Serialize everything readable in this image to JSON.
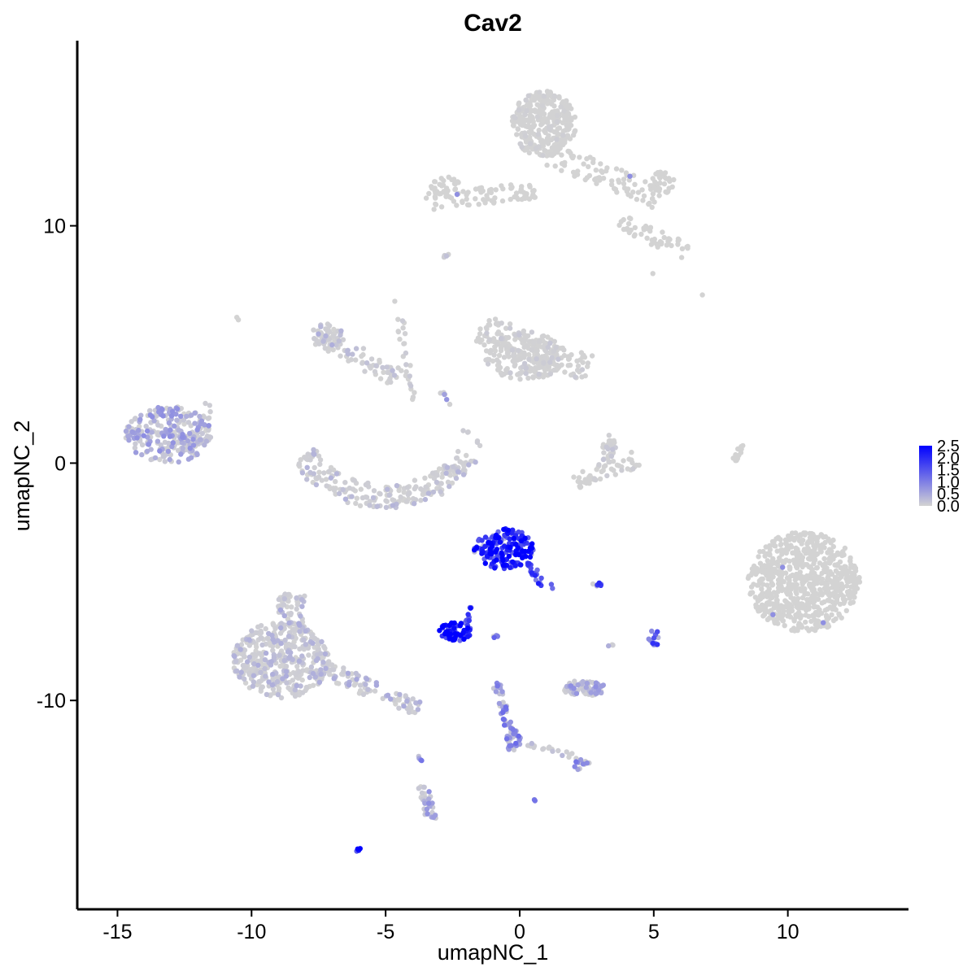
{
  "chart_data": {
    "type": "scatter",
    "title": "Cav2",
    "xlabel": "umapNC_1",
    "ylabel": "umapNC_2",
    "xlim": [
      -16.5,
      14.5
    ],
    "ylim": [
      -18.8,
      17.8
    ],
    "xticks": [
      -15,
      -10,
      -5,
      0,
      5,
      10
    ],
    "xtick_labels": [
      "-15",
      "-10",
      "-5",
      "0",
      "5",
      "10"
    ],
    "yticks": [
      -10,
      0,
      10
    ],
    "ytick_labels": [
      "-10",
      "0",
      "10"
    ],
    "grid": false,
    "legend": {
      "placement": "right",
      "labels": [
        "2.5",
        "2.0",
        "1.5",
        "1.0",
        "0.5",
        "0.0"
      ],
      "values": [
        2.5,
        2.0,
        1.5,
        1.0,
        0.5,
        0.0
      ],
      "range": [
        0,
        2.5
      ]
    },
    "color_low": "#d3d3d3",
    "color_high": "#0000ff",
    "clusters": [
      {
        "shape": "ellipse",
        "cx": 0.9,
        "cy": 14.3,
        "rx": 1.2,
        "ry": 1.4,
        "n": 320,
        "expr": 0.05
      },
      {
        "shape": "segment",
        "x1": 1.2,
        "y1": 13.0,
        "x2": 5.2,
        "y2": 11.2,
        "w": 0.5,
        "n": 90,
        "expr": 0.02
      },
      {
        "shape": "ellipse",
        "cx": 5.3,
        "cy": 11.8,
        "rx": 0.5,
        "ry": 0.5,
        "n": 30,
        "expr": 0.02
      },
      {
        "shape": "segment",
        "x1": 3.8,
        "y1": 10.2,
        "x2": 6.2,
        "y2": 8.9,
        "w": 0.35,
        "n": 50,
        "expr": 0.02
      },
      {
        "shape": "segment",
        "x1": -3.5,
        "y1": 11.0,
        "x2": 0.6,
        "y2": 11.5,
        "w": 0.35,
        "n": 75,
        "expr": 0.02
      },
      {
        "shape": "ellipse",
        "cx": -2.8,
        "cy": 11.6,
        "rx": 0.6,
        "ry": 0.5,
        "n": 35,
        "expr": 0.02
      },
      {
        "shape": "ellipse",
        "cx": 0.2,
        "cy": 4.5,
        "rx": 1.5,
        "ry": 1.0,
        "n": 200,
        "expr": 0.1
      },
      {
        "shape": "segment",
        "x1": -1.5,
        "y1": 5.7,
        "x2": 2.6,
        "y2": 4.0,
        "w": 0.6,
        "n": 120,
        "expr": 0.08
      },
      {
        "shape": "ellipse",
        "cx": -7.2,
        "cy": 5.4,
        "rx": 0.6,
        "ry": 0.5,
        "n": 40,
        "expr": 0.3
      },
      {
        "shape": "segment",
        "x1": -7.5,
        "y1": 5.4,
        "x2": -4.6,
        "y2": 3.6,
        "w": 0.4,
        "n": 70,
        "expr": 0.22
      },
      {
        "shape": "segment",
        "x1": -4.6,
        "y1": 7.0,
        "x2": -4.0,
        "y2": 2.5,
        "w": 0.15,
        "n": 25,
        "expr": 0.1
      },
      {
        "shape": "arc",
        "cx": -5.0,
        "cy": 1.4,
        "rx": 3.3,
        "ry": 2.8,
        "a1": 200,
        "a2": 340,
        "w": 0.5,
        "n": 220,
        "expr": 0.25
      },
      {
        "shape": "ellipse",
        "cx": -13.1,
        "cy": 1.2,
        "rx": 1.6,
        "ry": 1.2,
        "n": 260,
        "expr": 0.55
      },
      {
        "shape": "segment",
        "x1": -12.3,
        "y1": 0.4,
        "x2": -11.6,
        "y2": 2.5,
        "w": 0.25,
        "n": 25,
        "expr": 0.3
      },
      {
        "shape": "ellipse",
        "cx": 3.3,
        "cy": 0.6,
        "rx": 0.35,
        "ry": 0.6,
        "n": 30,
        "expr": 0.15
      },
      {
        "shape": "segment",
        "x1": 2.1,
        "y1": -0.8,
        "x2": 4.4,
        "y2": 0.2,
        "w": 0.35,
        "n": 50,
        "expr": 0.06
      },
      {
        "shape": "segment",
        "x1": 8.0,
        "y1": 0.0,
        "x2": 8.3,
        "y2": 0.9,
        "w": 0.1,
        "n": 12,
        "expr": 0.02
      },
      {
        "shape": "ellipse",
        "cx": 10.6,
        "cy": -5.0,
        "rx": 2.1,
        "ry": 2.1,
        "n": 700,
        "expr": 0.01
      },
      {
        "shape": "ellipse",
        "cx": -0.6,
        "cy": -3.6,
        "rx": 1.1,
        "ry": 0.9,
        "n": 180,
        "expr": 1.9
      },
      {
        "shape": "segment",
        "x1": 0.2,
        "y1": -4.2,
        "x2": 1.2,
        "y2": -5.4,
        "w": 0.2,
        "n": 20,
        "expr": 1.5
      },
      {
        "shape": "ellipse",
        "cx": -2.4,
        "cy": -7.1,
        "rx": 0.6,
        "ry": 0.4,
        "n": 70,
        "expr": 2.0
      },
      {
        "shape": "segment",
        "x1": -2.0,
        "y1": -6.8,
        "x2": -1.7,
        "y2": -5.8,
        "w": 0.1,
        "n": 10,
        "expr": 1.6
      },
      {
        "shape": "ellipse",
        "cx": 5.0,
        "cy": -7.4,
        "rx": 0.2,
        "ry": 0.4,
        "n": 14,
        "expr": 1.3
      },
      {
        "shape": "ellipse",
        "cx": 2.9,
        "cy": -5.1,
        "rx": 0.18,
        "ry": 0.1,
        "n": 6,
        "expr": 1.4
      },
      {
        "shape": "ellipse",
        "cx": -0.9,
        "cy": -7.2,
        "rx": 0.12,
        "ry": 0.2,
        "n": 5,
        "expr": 1.1
      },
      {
        "shape": "ellipse",
        "cx": 3.4,
        "cy": -7.7,
        "rx": 0.1,
        "ry": 0.1,
        "n": 3,
        "expr": 0.3
      },
      {
        "shape": "ellipse",
        "cx": 2.4,
        "cy": -9.5,
        "rx": 0.8,
        "ry": 0.35,
        "n": 80,
        "expr": 0.55
      },
      {
        "shape": "ellipse",
        "cx": -8.9,
        "cy": -8.3,
        "rx": 1.8,
        "ry": 1.6,
        "n": 430,
        "expr": 0.3
      },
      {
        "shape": "segment",
        "x1": -8.5,
        "y1": -5.5,
        "x2": -8.5,
        "y2": -7.0,
        "w": 0.5,
        "n": 60,
        "expr": 0.35
      },
      {
        "shape": "segment",
        "x1": -7.4,
        "y1": -8.6,
        "x2": -3.8,
        "y2": -10.4,
        "w": 0.35,
        "n": 90,
        "expr": 0.35
      },
      {
        "shape": "segment",
        "x1": -0.9,
        "y1": -9.2,
        "x2": -0.3,
        "y2": -11.5,
        "w": 0.15,
        "n": 40,
        "expr": 0.8
      },
      {
        "shape": "ellipse",
        "cx": -0.2,
        "cy": -11.7,
        "rx": 0.3,
        "ry": 0.5,
        "n": 30,
        "expr": 0.85
      },
      {
        "shape": "segment",
        "x1": 0.1,
        "y1": -11.8,
        "x2": 2.3,
        "y2": -12.4,
        "w": 0.12,
        "n": 18,
        "expr": 0.3
      },
      {
        "shape": "ellipse",
        "cx": 2.3,
        "cy": -12.7,
        "rx": 0.3,
        "ry": 0.3,
        "n": 15,
        "expr": 0.75
      },
      {
        "shape": "segment",
        "x1": -3.6,
        "y1": -13.6,
        "x2": -3.3,
        "y2": -15.0,
        "w": 0.2,
        "n": 35,
        "expr": 0.55
      },
      {
        "shape": "segment",
        "x1": -3.8,
        "y1": -11.8,
        "x2": -3.7,
        "y2": -12.6,
        "w": 0.05,
        "n": 4,
        "expr": 0.8
      },
      {
        "shape": "ellipse",
        "cx": -6.0,
        "cy": -16.3,
        "rx": 0.15,
        "ry": 0.08,
        "n": 5,
        "expr": 1.8
      },
      {
        "shape": "ellipse",
        "cx": 0.6,
        "cy": -14.2,
        "rx": 0.08,
        "ry": 0.08,
        "n": 3,
        "expr": 1.0
      },
      {
        "shape": "segment",
        "x1": -2.9,
        "y1": 3.0,
        "x2": -2.4,
        "y2": 2.0,
        "w": 0.1,
        "n": 6,
        "expr": 0.6
      },
      {
        "shape": "segment",
        "x1": -2.3,
        "y1": 1.5,
        "x2": -1.3,
        "y2": 0.7,
        "w": 0.1,
        "n": 6,
        "expr": 0.3
      },
      {
        "shape": "ellipse",
        "cx": -10.5,
        "cy": 6.1,
        "rx": 0.08,
        "ry": 0.08,
        "n": 2,
        "expr": 0.0
      },
      {
        "shape": "ellipse",
        "cx": -2.7,
        "cy": 8.7,
        "rx": 0.15,
        "ry": 0.12,
        "n": 5,
        "expr": 0.3
      },
      {
        "shape": "ellipse",
        "cx": 6.8,
        "cy": 7.1,
        "rx": 0.05,
        "ry": 0.05,
        "n": 1,
        "expr": 0.0
      },
      {
        "shape": "ellipse",
        "cx": 5.0,
        "cy": 8.0,
        "rx": 0.05,
        "ry": 0.05,
        "n": 1,
        "expr": 0.0
      }
    ]
  }
}
